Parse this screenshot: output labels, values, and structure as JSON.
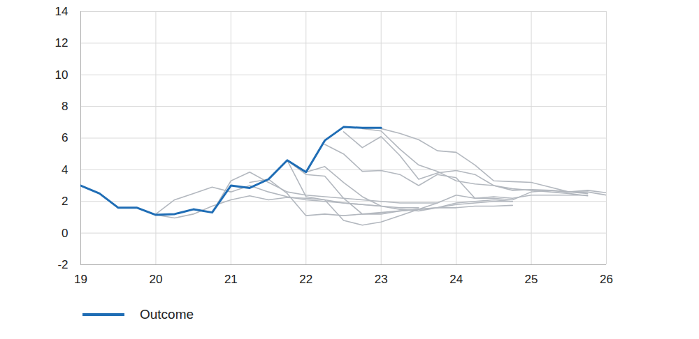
{
  "chart_data": {
    "type": "line",
    "x": [
      19,
      19.25,
      19.5,
      19.75,
      20,
      20.25,
      20.5,
      20.75,
      21,
      21.25,
      21.5,
      21.75,
      22,
      22.25,
      22.5,
      22.75,
      23,
      23.25,
      23.5,
      23.75,
      24,
      24.25,
      24.5,
      24.75,
      25,
      25.25,
      25.5,
      25.75,
      26
    ],
    "xlim": [
      19,
      26
    ],
    "xticks": [
      19,
      20,
      21,
      22,
      23,
      24,
      25,
      26
    ],
    "ylim": [
      -2,
      14
    ],
    "yticks": [
      -2,
      0,
      2,
      4,
      6,
      8,
      10,
      12,
      14
    ],
    "grid": true,
    "legend": "bottom-left",
    "series": [
      {
        "color": "#b3b8bf",
        "values": [
          null,
          null,
          null,
          null,
          1.2,
          2.1,
          2.5,
          2.9,
          2.6,
          3.0,
          2.6,
          2.3,
          2.1,
          2.0,
          1.9,
          1.8,
          1.7,
          null,
          null,
          null,
          null,
          null,
          null,
          null,
          null,
          null,
          null,
          null,
          null
        ]
      },
      {
        "color": "#b3b8bf",
        "values": [
          null,
          null,
          null,
          null,
          1.15,
          0.95,
          1.2,
          1.7,
          2.1,
          2.35,
          2.1,
          2.25,
          2.2,
          2.1,
          1.9,
          1.8,
          1.7,
          1.6,
          1.6,
          null,
          null,
          null,
          null,
          null,
          null,
          null,
          null,
          null,
          null
        ]
      },
      {
        "color": "#b3b8bf",
        "values": [
          null,
          null,
          null,
          null,
          null,
          null,
          null,
          1.3,
          3.3,
          3.85,
          3.2,
          2.6,
          2.4,
          2.3,
          2.2,
          2.1,
          2.0,
          1.9,
          1.9,
          1.9,
          null,
          null,
          null,
          null,
          null,
          null,
          null,
          null,
          null
        ]
      },
      {
        "color": "#b3b8bf",
        "values": [
          null,
          null,
          null,
          null,
          null,
          null,
          null,
          null,
          null,
          3.2,
          3.4,
          2.5,
          1.1,
          1.2,
          1.1,
          1.2,
          1.3,
          1.4,
          1.5,
          1.6,
          1.8,
          1.9,
          2.0,
          2.0,
          null,
          null,
          null,
          null,
          null
        ]
      },
      {
        "color": "#b3b8bf",
        "values": [
          null,
          null,
          null,
          null,
          null,
          null,
          null,
          null,
          null,
          null,
          null,
          4.6,
          3.7,
          3.6,
          2.2,
          1.2,
          1.2,
          1.4,
          1.5,
          1.6,
          1.6,
          1.7,
          1.7,
          1.75,
          null,
          null,
          null,
          null,
          null
        ]
      },
      {
        "color": "#b3b8bf",
        "values": [
          null,
          null,
          null,
          null,
          null,
          null,
          null,
          null,
          null,
          null,
          null,
          null,
          3.85,
          4.2,
          3.2,
          2.3,
          1.7,
          1.5,
          1.4,
          1.6,
          1.9,
          2.0,
          2.1,
          2.0,
          null,
          null,
          null,
          null,
          null
        ]
      },
      {
        "color": "#b3b8bf",
        "values": [
          null,
          null,
          null,
          null,
          null,
          null,
          null,
          null,
          null,
          null,
          null,
          null,
          null,
          5.6,
          5.0,
          3.9,
          3.95,
          3.7,
          3.0,
          3.7,
          3.5,
          2.2,
          2.3,
          2.2,
          2.4,
          2.4,
          2.4,
          2.4,
          null
        ]
      },
      {
        "color": "#b3b8bf",
        "values": [
          null,
          null,
          null,
          null,
          null,
          null,
          null,
          null,
          null,
          null,
          null,
          null,
          null,
          null,
          6.4,
          5.4,
          6.1,
          4.9,
          3.4,
          3.8,
          3.95,
          3.7,
          3.0,
          2.8,
          2.7,
          2.6,
          2.5,
          2.35,
          null
        ]
      },
      {
        "color": "#b3b8bf",
        "values": [
          null,
          null,
          null,
          null,
          null,
          null,
          null,
          null,
          null,
          null,
          null,
          null,
          null,
          null,
          null,
          6.6,
          6.45,
          5.3,
          4.3,
          3.9,
          3.3,
          3.1,
          3.0,
          2.7,
          2.75,
          2.7,
          2.6,
          2.5,
          null
        ]
      },
      {
        "color": "#b3b8bf",
        "values": [
          null,
          null,
          null,
          null,
          null,
          null,
          null,
          null,
          null,
          null,
          null,
          null,
          null,
          null,
          null,
          null,
          6.6,
          6.3,
          5.9,
          5.2,
          5.1,
          4.3,
          3.3,
          3.25,
          3.2,
          2.9,
          2.6,
          2.7,
          2.55
        ]
      },
      {
        "color": "#b3b8bf",
        "values": [
          null,
          null,
          null,
          null,
          null,
          null,
          null,
          null,
          null,
          null,
          null,
          4.6,
          2.3,
          2.1,
          0.8,
          0.5,
          0.7,
          1.1,
          1.5,
          1.9,
          2.4,
          2.2,
          2.2,
          2.1,
          2.6,
          2.7,
          2.6,
          2.6,
          2.4
        ]
      },
      {
        "name": "Outcome",
        "color": "#1f6db5",
        "values": [
          3.0,
          2.5,
          1.6,
          1.6,
          1.15,
          1.2,
          1.5,
          1.3,
          3.0,
          2.85,
          3.4,
          4.6,
          3.85,
          5.85,
          6.7,
          6.65,
          6.65,
          null,
          null,
          null,
          null,
          null,
          null,
          null,
          null,
          null,
          null,
          null,
          null
        ]
      }
    ]
  }
}
